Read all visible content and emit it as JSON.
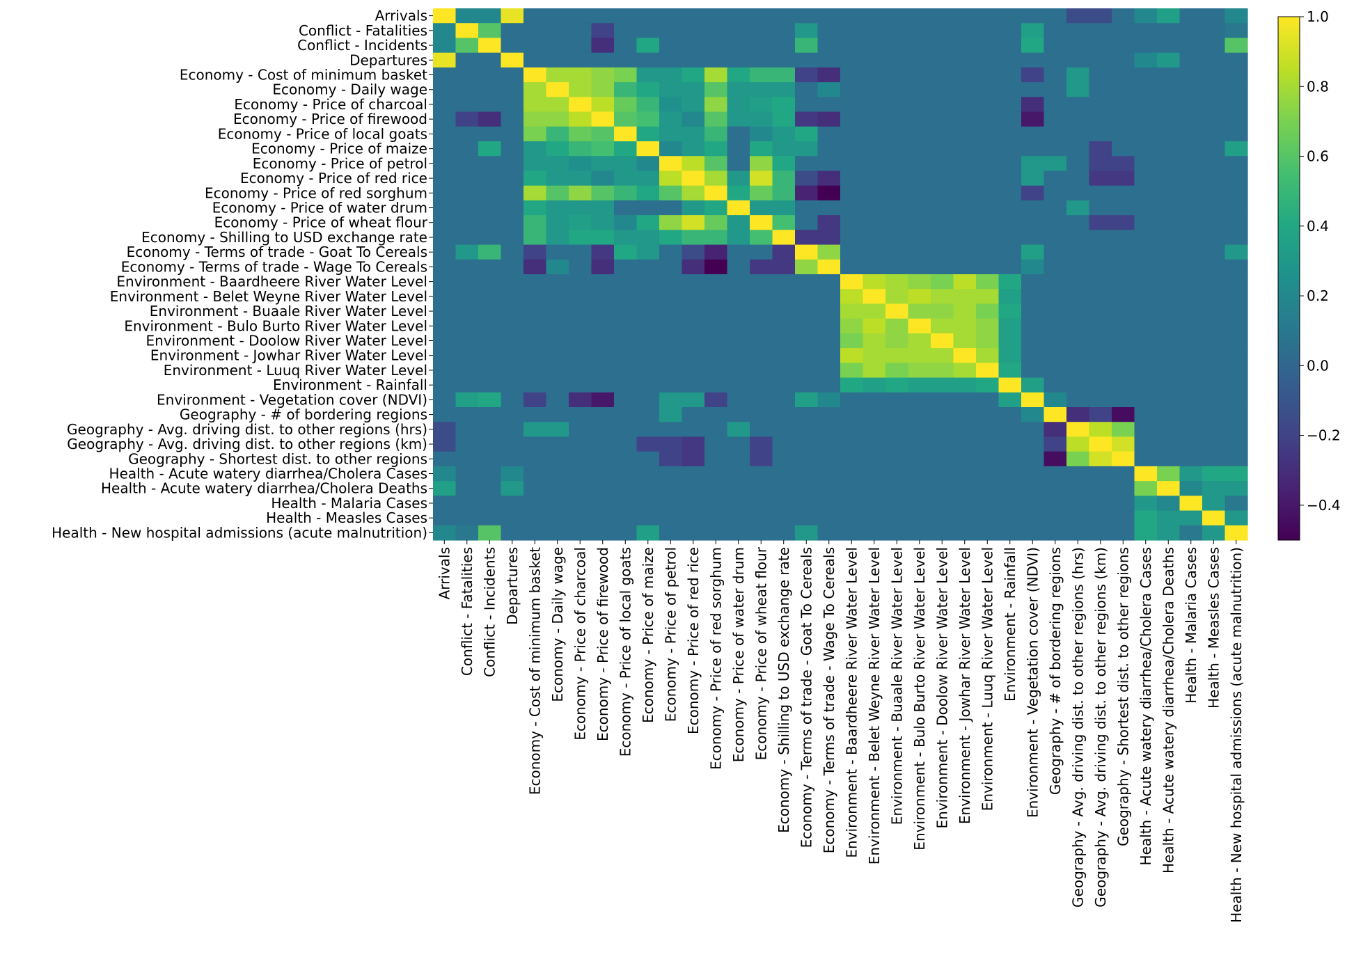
{
  "chart_data": {
    "type": "heatmap",
    "title": "",
    "xlabel": "",
    "ylabel": "",
    "labels": [
      "Arrivals",
      "Conflict - Fatalities",
      "Conflict - Incidents",
      "Departures",
      "Economy - Cost of minimum basket",
      "Economy - Daily wage",
      "Economy - Price of charcoal",
      "Economy - Price of firewood",
      "Economy - Price of local goats",
      "Economy - Price of maize",
      "Economy - Price of petrol",
      "Economy - Price of red rice",
      "Economy - Price of red sorghum",
      "Economy - Price of water drum",
      "Economy - Price of wheat flour",
      "Economy - Shilling to USD exchange rate",
      "Economy - Terms of trade - Goat To Cereals",
      "Economy - Terms of trade - Wage To Cereals",
      "Environment - Baardheere River Water Level",
      "Environment - Belet Weyne River Water Level",
      "Environment - Buaale River Water Level",
      "Environment - Bulo Burto River Water Level",
      "Environment - Doolow River Water Level",
      "Environment - Jowhar River Water Level",
      "Environment - Luuq River Water Level",
      "Environment - Rainfall",
      "Environment - Vegetation cover (NDVI)",
      "Geography - # of bordering regions",
      "Geography - Avg. driving dist. to other regions (hrs)",
      "Geography - Avg. driving dist. to other regions (km)",
      "Geography - Shortest dist. to other regions",
      "Health - Acute watery diarrhea/Cholera Cases",
      "Health - Acute watery diarrhea/Cholera Deaths",
      "Health - Malaria Cases",
      "Health - Measles Cases",
      "Health - New hospital admissions (acute malnutrition)"
    ],
    "color_range": [
      -0.5,
      1.0
    ],
    "colorbar_ticks": [
      -0.4,
      -0.2,
      0.0,
      0.2,
      0.4,
      0.6,
      0.8,
      1.0
    ],
    "colorbar_tick_labels": [
      "−0.4",
      "−0.2",
      "0.0",
      "0.2",
      "0.4",
      "0.6",
      "0.8",
      "1.0"
    ],
    "colormap": "viridis",
    "default_value": 0.05,
    "values_sparse": [
      [
        0,
        1,
        0.2
      ],
      [
        0,
        2,
        0.2
      ],
      [
        0,
        3,
        0.95
      ],
      [
        0,
        28,
        -0.15
      ],
      [
        0,
        29,
        -0.15
      ],
      [
        0,
        31,
        0.2
      ],
      [
        0,
        32,
        0.35
      ],
      [
        0,
        35,
        0.2
      ],
      [
        1,
        2,
        0.6
      ],
      [
        1,
        7,
        -0.2
      ],
      [
        1,
        16,
        0.3
      ],
      [
        1,
        26,
        0.35
      ],
      [
        1,
        35,
        0.1
      ],
      [
        2,
        7,
        -0.3
      ],
      [
        2,
        9,
        0.4
      ],
      [
        2,
        16,
        0.5
      ],
      [
        2,
        26,
        0.4
      ],
      [
        2,
        35,
        0.6
      ],
      [
        3,
        32,
        0.3
      ],
      [
        3,
        31,
        0.2
      ],
      [
        4,
        5,
        0.8
      ],
      [
        4,
        6,
        0.8
      ],
      [
        4,
        7,
        0.75
      ],
      [
        4,
        8,
        0.7
      ],
      [
        4,
        9,
        0.3
      ],
      [
        4,
        10,
        0.3
      ],
      [
        4,
        11,
        0.4
      ],
      [
        4,
        12,
        0.8
      ],
      [
        4,
        13,
        0.4
      ],
      [
        4,
        14,
        0.5
      ],
      [
        4,
        15,
        0.5
      ],
      [
        4,
        16,
        -0.2
      ],
      [
        4,
        17,
        -0.3
      ],
      [
        4,
        26,
        -0.2
      ],
      [
        4,
        28,
        0.3
      ],
      [
        5,
        6,
        0.8
      ],
      [
        5,
        7,
        0.75
      ],
      [
        5,
        8,
        0.5
      ],
      [
        5,
        9,
        0.4
      ],
      [
        5,
        10,
        0.3
      ],
      [
        5,
        11,
        0.3
      ],
      [
        5,
        12,
        0.6
      ],
      [
        5,
        13,
        0.3
      ],
      [
        5,
        14,
        0.3
      ],
      [
        5,
        15,
        0.3
      ],
      [
        5,
        17,
        0.2
      ],
      [
        5,
        28,
        0.3
      ],
      [
        6,
        7,
        0.85
      ],
      [
        6,
        8,
        0.65
      ],
      [
        6,
        9,
        0.5
      ],
      [
        6,
        10,
        0.25
      ],
      [
        6,
        11,
        0.3
      ],
      [
        6,
        12,
        0.75
      ],
      [
        6,
        13,
        0.3
      ],
      [
        6,
        14,
        0.35
      ],
      [
        6,
        15,
        0.4
      ],
      [
        6,
        26,
        -0.3
      ],
      [
        7,
        8,
        0.6
      ],
      [
        7,
        9,
        0.55
      ],
      [
        7,
        10,
        0.3
      ],
      [
        7,
        11,
        0.2
      ],
      [
        7,
        12,
        0.6
      ],
      [
        7,
        13,
        0.3
      ],
      [
        7,
        14,
        0.3
      ],
      [
        7,
        15,
        0.4
      ],
      [
        7,
        16,
        -0.25
      ],
      [
        7,
        17,
        -0.3
      ],
      [
        7,
        26,
        -0.4
      ],
      [
        8,
        9,
        0.4
      ],
      [
        8,
        10,
        0.3
      ],
      [
        8,
        11,
        0.3
      ],
      [
        8,
        12,
        0.5
      ],
      [
        8,
        14,
        0.2
      ],
      [
        8,
        15,
        0.3
      ],
      [
        8,
        16,
        0.4
      ],
      [
        9,
        10,
        0.2
      ],
      [
        9,
        11,
        0.3
      ],
      [
        9,
        12,
        0.4
      ],
      [
        9,
        14,
        0.4
      ],
      [
        9,
        15,
        0.3
      ],
      [
        9,
        16,
        0.3
      ],
      [
        9,
        29,
        -0.2
      ],
      [
        9,
        35,
        0.35
      ],
      [
        10,
        11,
        0.85
      ],
      [
        10,
        12,
        0.6
      ],
      [
        10,
        14,
        0.75
      ],
      [
        10,
        15,
        0.4
      ],
      [
        10,
        26,
        0.3
      ],
      [
        10,
        27,
        0.3
      ],
      [
        10,
        29,
        -0.2
      ],
      [
        10,
        30,
        -0.2
      ],
      [
        11,
        12,
        0.8
      ],
      [
        11,
        13,
        0.3
      ],
      [
        11,
        14,
        0.9
      ],
      [
        11,
        15,
        0.5
      ],
      [
        11,
        16,
        -0.15
      ],
      [
        11,
        17,
        -0.3
      ],
      [
        11,
        26,
        0.3
      ],
      [
        11,
        29,
        -0.25
      ],
      [
        11,
        30,
        -0.25
      ],
      [
        12,
        13,
        0.4
      ],
      [
        12,
        14,
        0.65
      ],
      [
        12,
        15,
        0.5
      ],
      [
        12,
        16,
        -0.35
      ],
      [
        12,
        17,
        -0.5
      ],
      [
        12,
        26,
        -0.2
      ],
      [
        13,
        14,
        0.3
      ],
      [
        13,
        15,
        0.3
      ],
      [
        13,
        28,
        0.3
      ],
      [
        14,
        15,
        0.55
      ],
      [
        14,
        17,
        -0.25
      ],
      [
        14,
        29,
        -0.2
      ],
      [
        14,
        30,
        -0.2
      ],
      [
        15,
        16,
        -0.25
      ],
      [
        15,
        17,
        -0.25
      ],
      [
        16,
        17,
        0.75
      ],
      [
        16,
        26,
        0.35
      ],
      [
        16,
        35,
        0.3
      ],
      [
        17,
        26,
        0.2
      ],
      [
        18,
        19,
        0.85
      ],
      [
        18,
        20,
        0.8
      ],
      [
        18,
        21,
        0.75
      ],
      [
        18,
        22,
        0.7
      ],
      [
        18,
        23,
        0.85
      ],
      [
        18,
        24,
        0.7
      ],
      [
        18,
        25,
        0.4
      ],
      [
        19,
        20,
        0.8
      ],
      [
        19,
        21,
        0.85
      ],
      [
        19,
        22,
        0.8
      ],
      [
        19,
        23,
        0.8
      ],
      [
        19,
        24,
        0.8
      ],
      [
        19,
        25,
        0.35
      ],
      [
        20,
        21,
        0.75
      ],
      [
        20,
        22,
        0.75
      ],
      [
        20,
        23,
        0.8
      ],
      [
        20,
        24,
        0.7
      ],
      [
        20,
        25,
        0.4
      ],
      [
        21,
        22,
        0.8
      ],
      [
        21,
        23,
        0.8
      ],
      [
        21,
        24,
        0.75
      ],
      [
        21,
        25,
        0.35
      ],
      [
        22,
        23,
        0.8
      ],
      [
        22,
        24,
        0.75
      ],
      [
        22,
        25,
        0.35
      ],
      [
        23,
        24,
        0.8
      ],
      [
        23,
        25,
        0.35
      ],
      [
        24,
        25,
        0.4
      ],
      [
        25,
        26,
        0.35
      ],
      [
        26,
        27,
        0.2
      ],
      [
        27,
        28,
        -0.3
      ],
      [
        27,
        29,
        -0.2
      ],
      [
        27,
        30,
        -0.45
      ],
      [
        28,
        29,
        0.85
      ],
      [
        28,
        30,
        0.7
      ],
      [
        29,
        30,
        0.9
      ],
      [
        31,
        32,
        0.7
      ],
      [
        31,
        33,
        0.3
      ],
      [
        31,
        34,
        0.4
      ],
      [
        31,
        35,
        0.4
      ],
      [
        32,
        33,
        0.2
      ],
      [
        32,
        34,
        0.3
      ],
      [
        32,
        35,
        0.3
      ],
      [
        33,
        34,
        0.3
      ],
      [
        33,
        35,
        0.1
      ],
      [
        34,
        35,
        0.3
      ]
    ]
  }
}
